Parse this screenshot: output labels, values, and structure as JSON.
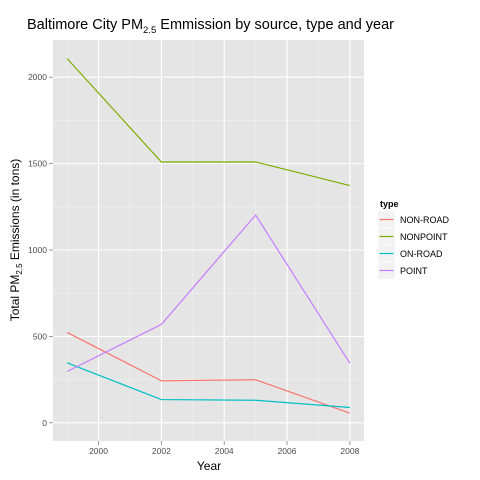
{
  "chart_data": {
    "type": "line",
    "title": {
      "main": "Baltimore City PM",
      "sub": "2.5",
      "rest": " Emmission by source, type and year"
    },
    "xlabel": "Year",
    "ylabel": {
      "main": "Total PM",
      "sub": "2.5",
      "rest": " Emissions (in tons)"
    },
    "x": [
      1999,
      2002,
      2005,
      2008
    ],
    "xlim": [
      1998.55,
      2008.45
    ],
    "ylim": [
      -105.5,
      2215.5
    ],
    "xticks": [
      2000,
      2002,
      2004,
      2006,
      2008
    ],
    "yticks": [
      0,
      500,
      1000,
      1500,
      2000
    ],
    "xminor": [
      1999,
      2001,
      2003,
      2005,
      2007
    ],
    "yminor": [
      250,
      750,
      1250,
      1750
    ],
    "grid": true,
    "legend": {
      "title": "type",
      "position": "right"
    },
    "series": [
      {
        "name": "NON-ROAD",
        "color": "#F8766D",
        "values": [
          522.94,
          242.85,
          248.93,
          55.82
        ]
      },
      {
        "name": "NONPOINT",
        "color": "#7CAE00",
        "values": [
          2107.63,
          1509.5,
          1509.5,
          1373.21
        ]
      },
      {
        "name": "ON-ROAD",
        "color": "#00BFC4",
        "values": [
          346.82,
          134.31,
          130.43,
          88.28
        ]
      },
      {
        "name": "POINT",
        "color": "#C77CFF",
        "values": [
          296.8,
          569.26,
          1202.49,
          344.98
        ]
      }
    ]
  }
}
